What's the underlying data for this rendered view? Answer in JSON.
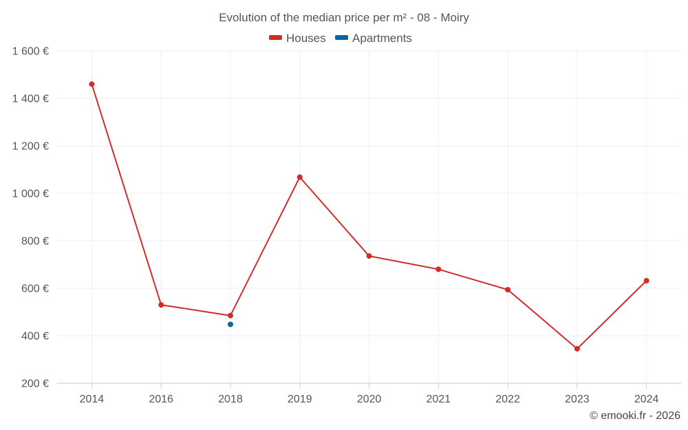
{
  "chart_data": {
    "type": "line",
    "title": "Evolution of the median price per m² - 08 - Moiry",
    "categories": [
      "2014",
      "2016",
      "2018",
      "2019",
      "2020",
      "2021",
      "2022",
      "2023",
      "2024"
    ],
    "series": [
      {
        "name": "Houses",
        "color": "#d32a2a",
        "values": [
          1460,
          530,
          485,
          1068,
          736,
          680,
          594,
          345,
          632
        ]
      },
      {
        "name": "Apartments",
        "color": "#0f6699",
        "values": [
          null,
          null,
          448,
          null,
          null,
          null,
          null,
          null,
          null
        ]
      }
    ],
    "y_ticks": [
      "200 €",
      "400 €",
      "600 €",
      "800 €",
      "1 000 €",
      "1 200 €",
      "1 400 €",
      "1 600 €"
    ],
    "y_tick_values": [
      200,
      400,
      600,
      800,
      1000,
      1200,
      1400,
      1600
    ],
    "ylim": [
      200,
      1600
    ],
    "xlabel": "",
    "ylabel": "",
    "grid": true,
    "legend_position": "top-center"
  },
  "credit": "© emooki.fr - 2026"
}
